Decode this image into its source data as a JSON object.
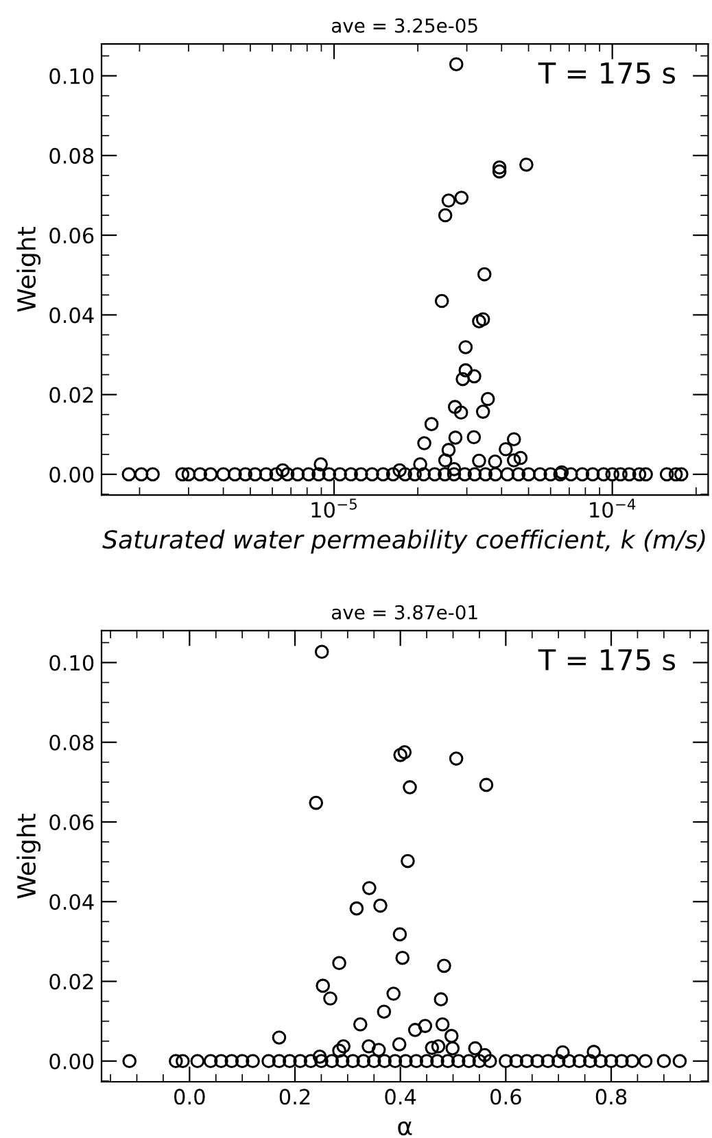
{
  "chart_data": [
    {
      "type": "scatter",
      "title": "ave = 3.25e-05",
      "xlabel": "Saturated water permeability coefficient, k (m/s)",
      "ylabel": "Weight",
      "annotations": [
        "T = 175 s"
      ],
      "log": "x",
      "marker": "circle",
      "xlim": [
        1.46e-06,
        0.000221
      ],
      "xticks": [
        {
          "value": 1e-05,
          "label": "10$^{−5}$"
        },
        {
          "value": 0.0001,
          "label": "10$^{−4}$"
        }
      ],
      "ylim": [
        -0.0052,
        0.108
      ],
      "yticks": [
        {
          "value": 0,
          "label": "0.00"
        },
        {
          "value": 0.02,
          "label": "0.02"
        },
        {
          "value": 0.04,
          "label": "0.04"
        },
        {
          "value": 0.06,
          "label": "0.06"
        },
        {
          "value": 0.08,
          "label": "0.08"
        },
        {
          "value": 0.1,
          "label": "0.10"
        }
      ],
      "series": [
        {
          "color": "#000000",
          "x": [
            2.75e-05,
            3.93e-05,
            3.93e-05,
            4.91e-05,
            2.58e-05,
            2.87e-05,
            2.51e-05,
            3.47e-05,
            2.44e-05,
            3.43e-05,
            3.32e-05,
            2.97e-05,
            2.97e-05,
            2.9e-05,
            3.19e-05,
            3.57e-05,
            2.72e-05,
            2.86e-05,
            3.43e-05,
            2.24e-05,
            2.73e-05,
            3.18e-05,
            4.43e-05,
            2.11e-05,
            4.14e-05,
            2.58e-05,
            4.68e-05,
            4.43e-05,
            2.51e-05,
            3.79e-05,
            3.32e-05,
            2.04e-05,
            8.96e-06,
            6.54e-06,
            1.72e-05,
            2.7e-05,
            6.58e-05,
            1.83e-06,
            2.03e-06,
            2.23e-06,
            2.85e-06,
            3e-06,
            3.3e-06,
            3.6e-06,
            4e-06,
            4.4e-06,
            4.8e-06,
            5.2e-06,
            5.7e-06,
            6.2e-06,
            6.8e-06,
            7.4e-06,
            8.1e-06,
            8.8e-06,
            9.6e-06,
            1.05e-05,
            1.15e-05,
            1.25e-05,
            1.37e-05,
            1.5e-05,
            1.63e-05,
            1.8e-05,
            1.95e-05,
            2.1e-05,
            2.3e-05,
            2.5e-05,
            2.7e-05,
            2.95e-05,
            3.2e-05,
            3.5e-05,
            3.8e-05,
            4.2e-05,
            4.6e-05,
            5e-05,
            5.5e-05,
            6e-05,
            6.5e-05,
            7.1e-05,
            7.8e-05,
            8.5e-05,
            9.3e-05,
            0.0001,
            0.000107,
            0.000115,
            0.000125,
            0.000132,
            0.000157,
            0.000169,
            0.000177
          ],
          "values": [
            0.1029,
            0.077,
            0.076,
            0.0777,
            0.0687,
            0.0694,
            0.065,
            0.0502,
            0.0435,
            0.0389,
            0.0384,
            0.0319,
            0.0261,
            0.0239,
            0.0246,
            0.0189,
            0.0169,
            0.0155,
            0.0157,
            0.0126,
            0.0092,
            0.0093,
            0.0088,
            0.0078,
            0.0063,
            0.0061,
            0.0041,
            0.0035,
            0.0035,
            0.0032,
            0.0034,
            0.0025,
            0.0025,
            0.001,
            0.001,
            0.0013,
            0.0005,
            0,
            0,
            0,
            0,
            0,
            0,
            0,
            0,
            0,
            0,
            0,
            0,
            0,
            0,
            0,
            0,
            0,
            0,
            0,
            0,
            0,
            0,
            0,
            0,
            0,
            0,
            0,
            0,
            0,
            0,
            0,
            0,
            0,
            0,
            0,
            0,
            0,
            0,
            0,
            0,
            0,
            0,
            0,
            0,
            0,
            0,
            0,
            0,
            0,
            0,
            0,
            0
          ]
        }
      ]
    },
    {
      "type": "scatter",
      "title": "ave = 3.87e-01",
      "xlabel": "α",
      "ylabel": "Weight",
      "annotations": [
        "T = 175 s"
      ],
      "marker": "circle",
      "xlim": [
        -0.167,
        0.984
      ],
      "xticks": [
        {
          "value": 0,
          "label": "0.0"
        },
        {
          "value": 0.2,
          "label": "0.2"
        },
        {
          "value": 0.4,
          "label": "0.4"
        },
        {
          "value": 0.6,
          "label": "0.6"
        },
        {
          "value": 0.8,
          "label": "0.8"
        }
      ],
      "ylim": [
        -0.0052,
        0.108
      ],
      "yticks": [
        {
          "value": 0,
          "label": "0.00"
        },
        {
          "value": 0.02,
          "label": "0.02"
        },
        {
          "value": 0.04,
          "label": "0.04"
        },
        {
          "value": 0.06,
          "label": "0.06"
        },
        {
          "value": 0.08,
          "label": "0.08"
        },
        {
          "value": 0.1,
          "label": "0.10"
        }
      ],
      "series": [
        {
          "color": "#000000",
          "x": [
            0.251,
            0.4,
            0.408,
            0.506,
            0.418,
            0.563,
            0.24,
            0.414,
            0.341,
            0.317,
            0.362,
            0.399,
            0.404,
            0.284,
            0.483,
            0.253,
            0.387,
            0.267,
            0.477,
            0.369,
            0.324,
            0.48,
            0.447,
            0.428,
            0.17,
            0.497,
            0.398,
            0.34,
            0.292,
            0.472,
            0.46,
            0.359,
            0.499,
            0.542,
            0.767,
            0.708,
            0.284,
            0.56,
            0.247,
            -0.114,
            -0.026,
            -0.013,
            0.015,
            0.04,
            0.06,
            0.08,
            0.1,
            0.12,
            0.15,
            0.17,
            0.19,
            0.21,
            0.23,
            0.25,
            0.27,
            0.29,
            0.31,
            0.33,
            0.35,
            0.37,
            0.39,
            0.41,
            0.43,
            0.45,
            0.47,
            0.49,
            0.51,
            0.53,
            0.55,
            0.57,
            0.6,
            0.62,
            0.64,
            0.66,
            0.68,
            0.7,
            0.72,
            0.74,
            0.76,
            0.78,
            0.8,
            0.82,
            0.84,
            0.865,
            0.9,
            0.93
          ],
          "values": [
            0.1027,
            0.0768,
            0.0775,
            0.0759,
            0.0687,
            0.0693,
            0.0648,
            0.0502,
            0.0434,
            0.0383,
            0.039,
            0.0318,
            0.0259,
            0.0246,
            0.0239,
            0.0189,
            0.0169,
            0.0157,
            0.0155,
            0.0124,
            0.0092,
            0.0092,
            0.0088,
            0.0078,
            0.0059,
            0.0063,
            0.0042,
            0.0037,
            0.0037,
            0.0037,
            0.0033,
            0.0028,
            0.0032,
            0.0032,
            0.0023,
            0.0022,
            0.0026,
            0.0015,
            0.0011,
            0,
            0,
            0,
            0,
            0,
            0,
            0,
            0,
            0,
            0,
            0,
            0,
            0,
            0,
            0,
            0,
            0,
            0,
            0,
            0,
            0,
            0,
            0,
            0,
            0,
            0,
            0,
            0,
            0,
            0,
            0,
            0,
            0,
            0,
            0,
            0,
            0,
            0,
            0,
            0,
            0,
            0,
            0,
            0,
            0,
            0,
            0
          ]
        }
      ]
    }
  ]
}
